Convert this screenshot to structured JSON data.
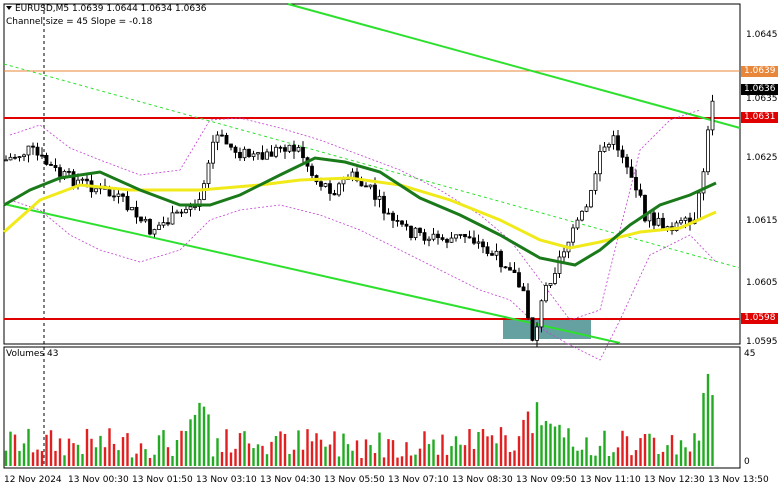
{
  "header": {
    "symbol_line": "EURUSD,M5  1.0639 1.0644 1.0634 1.0636",
    "channel_line": "Channel size = 45 Slope = -0.18"
  },
  "price_axis": {
    "ticks": [
      "1.0645",
      "1.0635",
      "1.0625",
      "1.0615",
      "1.0605",
      "1.0595"
    ],
    "price_tags": [
      {
        "text": "1.0639",
        "color": "#e8873a"
      },
      {
        "text": "1.0636",
        "color": "#000000"
      },
      {
        "text": "1.0631",
        "color": "#e00000"
      },
      {
        "text": "1.0598",
        "color": "#e00000"
      }
    ]
  },
  "volume_pane": {
    "label": "Volumes 43",
    "ticks": [
      "45",
      "0"
    ]
  },
  "time_axis": {
    "labels": [
      "12 Nov 2024",
      "13 Nov 00:30",
      "13 Nov 01:50",
      "13 Nov 03:10",
      "13 Nov 04:30",
      "13 Nov 05:50",
      "13 Nov 07:10",
      "13 Nov 08:30",
      "13 Nov 09:50",
      "13 Nov 11:10",
      "13 Nov 12:30",
      "13 Nov 13:50"
    ]
  },
  "colors": {
    "channel": "#2ee02e",
    "ma_fast": "#1a7a1a",
    "ma_slow": "#f0ea1a",
    "resistance": "#e00000",
    "envelope": "#c040d0",
    "volume_up": "#22aa22",
    "volume_down": "#e02020",
    "zone": "#4a9090"
  }
}
